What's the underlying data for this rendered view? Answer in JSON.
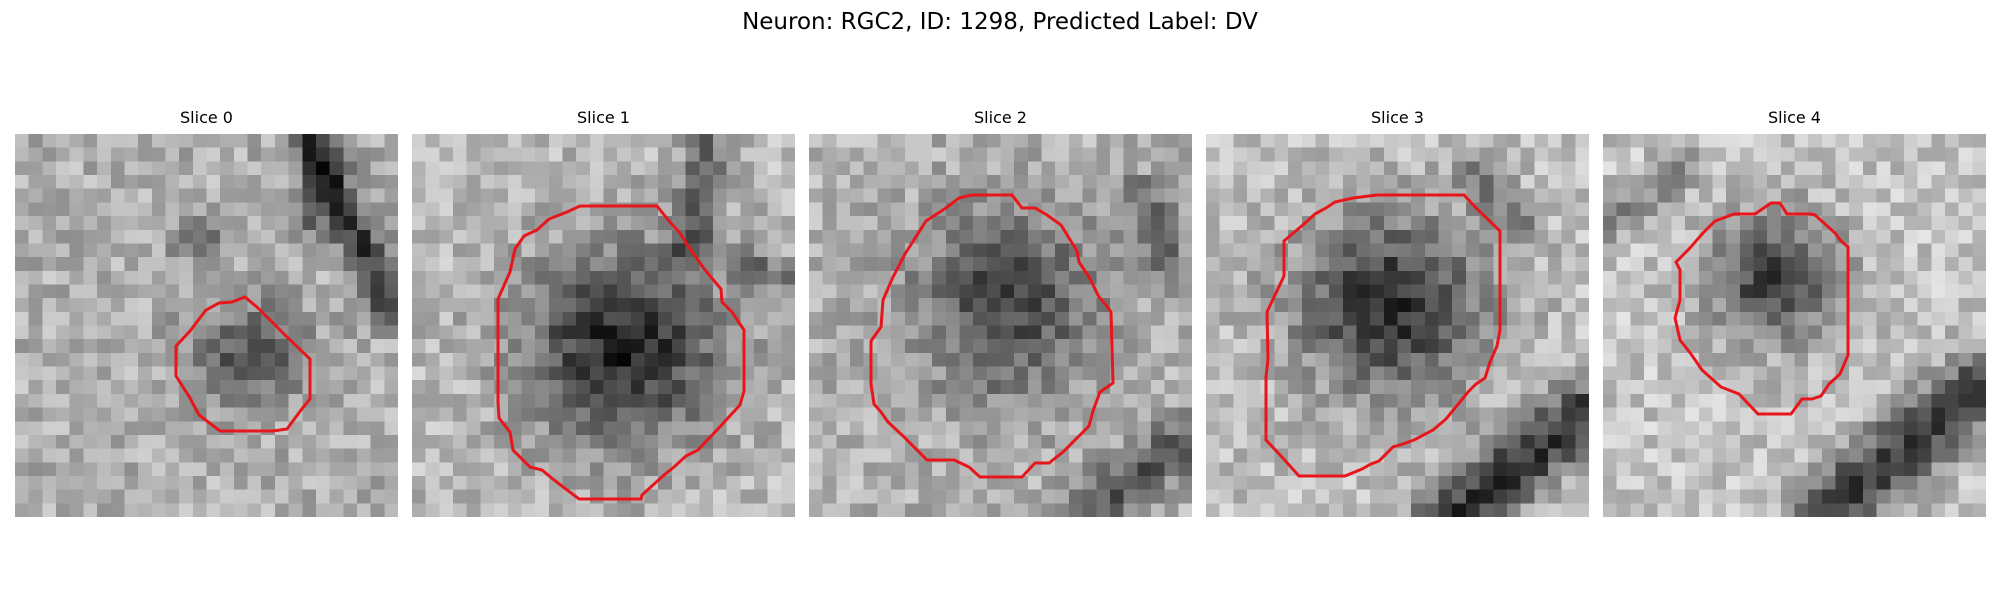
{
  "figure": {
    "title": "Neuron: RGC2, ID: 1298, Predicted Label: DV"
  },
  "outline_color": "#e8161b",
  "panels": [
    {
      "title": "Slice 0",
      "grid": 28
    },
    {
      "title": "Slice 1",
      "grid": 28
    },
    {
      "title": "Slice 2",
      "grid": 28
    },
    {
      "title": "Slice 3",
      "grid": 28
    },
    {
      "title": "Slice 4",
      "grid": 28
    }
  ]
}
